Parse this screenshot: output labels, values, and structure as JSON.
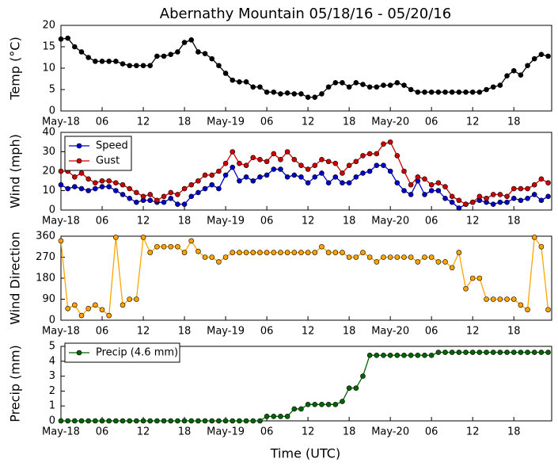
{
  "chart_data": [
    {
      "type": "line",
      "title": "Abernathy Mountain 05/18/16 - 05/20/16",
      "ylabel": "Temp (°C)",
      "categories": [
        "May-18",
        null,
        null,
        null,
        null,
        null,
        "06",
        null,
        null,
        null,
        null,
        null,
        "12",
        null,
        null,
        null,
        null,
        null,
        "18",
        null,
        null,
        null,
        null,
        null,
        "May-19",
        null,
        null,
        null,
        null,
        null,
        "06",
        null,
        null,
        null,
        null,
        null,
        "12",
        null,
        null,
        null,
        null,
        null,
        "18",
        null,
        null,
        null,
        null,
        null,
        "May-20",
        null,
        null,
        null,
        null,
        null,
        "06",
        null,
        null,
        null,
        null,
        null,
        "12",
        null,
        null,
        null,
        null,
        null,
        "18",
        null,
        null,
        null,
        null,
        null
      ],
      "values": [
        16.8,
        17.0,
        15.0,
        13.8,
        12.5,
        11.6,
        11.6,
        11.6,
        11.6,
        11.0,
        10.6,
        10.6,
        10.6,
        10.6,
        12.8,
        12.8,
        13.2,
        13.8,
        16.0,
        16.6,
        13.8,
        13.4,
        12.2,
        10.6,
        8.8,
        7.2,
        6.8,
        6.8,
        5.6,
        5.6,
        4.4,
        4.4,
        4.0,
        4.2,
        4.0,
        4.0,
        3.2,
        3.2,
        4.0,
        5.6,
        6.6,
        6.6,
        5.6,
        6.6,
        6.2,
        5.6,
        5.6,
        6.0,
        6.0,
        6.6,
        6.0,
        5.0,
        4.4,
        4.4,
        4.4,
        4.4,
        4.4,
        4.4,
        4.4,
        4.4,
        4.4,
        4.4,
        5.0,
        5.6,
        6.0,
        8.2,
        9.4,
        8.4,
        10.6,
        12.2,
        13.2,
        12.8
      ],
      "color": "#000000",
      "ylim": [
        0,
        20
      ],
      "yticks": [
        0,
        5,
        10,
        15,
        20
      ]
    },
    {
      "type": "line",
      "ylabel": "Wind (mph)",
      "categories": [
        "May-18",
        null,
        null,
        null,
        null,
        null,
        "06",
        null,
        null,
        null,
        null,
        null,
        "12",
        null,
        null,
        null,
        null,
        null,
        "18",
        null,
        null,
        null,
        null,
        null,
        "May-19",
        null,
        null,
        null,
        null,
        null,
        "06",
        null,
        null,
        null,
        null,
        null,
        "12",
        null,
        null,
        null,
        null,
        null,
        "18",
        null,
        null,
        null,
        null,
        null,
        "May-20",
        null,
        null,
        null,
        null,
        null,
        "06",
        null,
        null,
        null,
        null,
        null,
        "12",
        null,
        null,
        null,
        null,
        null,
        "18",
        null,
        null,
        null,
        null,
        null
      ],
      "series": [
        {
          "name": "Speed",
          "color": "#0000cc",
          "values": [
            13,
            11,
            12,
            11,
            10,
            11,
            12,
            12,
            10,
            8,
            6,
            4,
            5,
            5,
            4,
            4,
            6,
            3,
            3,
            7,
            9,
            11,
            13,
            11,
            18,
            22,
            15,
            17,
            15,
            17,
            18,
            21,
            21,
            17,
            18,
            17,
            14,
            17,
            19,
            14,
            17,
            14,
            14,
            17,
            19,
            20,
            23,
            23,
            20,
            14,
            10,
            8,
            15,
            8,
            10,
            10,
            6,
            4,
            1,
            3,
            4,
            5,
            4,
            3,
            4,
            4,
            6,
            5,
            6,
            8,
            5,
            7
          ]
        },
        {
          "name": "Gust",
          "color": "#cc0000",
          "values": [
            20,
            20,
            17,
            19,
            16,
            14,
            15,
            15,
            14,
            13,
            11,
            9,
            7,
            8,
            5,
            7,
            9,
            8,
            11,
            13,
            15,
            18,
            18,
            20,
            24,
            30,
            24,
            23,
            27,
            26,
            25,
            29,
            26,
            30,
            26,
            23,
            21,
            23,
            26,
            25,
            24,
            19,
            23,
            25,
            28,
            29,
            29,
            34,
            35,
            28,
            20,
            13,
            17,
            16,
            13,
            14,
            12,
            7,
            5,
            3,
            4,
            7,
            6,
            8,
            8,
            7,
            11,
            11,
            11,
            13,
            16,
            14
          ]
        }
      ],
      "ylim": [
        0,
        40
      ],
      "yticks": [
        0,
        10,
        20,
        30,
        40
      ],
      "legend": "upper left"
    },
    {
      "type": "line",
      "ylabel": "Wind Direction",
      "categories": [
        "May-18",
        null,
        null,
        null,
        null,
        null,
        "06",
        null,
        null,
        null,
        null,
        null,
        "12",
        null,
        null,
        null,
        null,
        null,
        "18",
        null,
        null,
        null,
        null,
        null,
        "May-19",
        null,
        null,
        null,
        null,
        null,
        "06",
        null,
        null,
        null,
        null,
        null,
        "12",
        null,
        null,
        null,
        null,
        null,
        "18",
        null,
        null,
        null,
        null,
        null,
        "May-20",
        null,
        null,
        null,
        null,
        null,
        "06",
        null,
        null,
        null,
        null,
        null,
        "12",
        null,
        null,
        null,
        null,
        null,
        "18",
        null,
        null,
        null,
        null,
        null
      ],
      "values": [
        340,
        50,
        65,
        20,
        50,
        65,
        45,
        20,
        355,
        65,
        90,
        90,
        355,
        290,
        315,
        315,
        315,
        315,
        290,
        340,
        295,
        270,
        270,
        250,
        270,
        290,
        290,
        290,
        290,
        290,
        290,
        290,
        290,
        290,
        290,
        290,
        290,
        290,
        315,
        290,
        290,
        290,
        270,
        270,
        290,
        270,
        250,
        270,
        270,
        270,
        270,
        270,
        250,
        270,
        270,
        250,
        250,
        225,
        290,
        135,
        180,
        180,
        90,
        90,
        90,
        90,
        90,
        65,
        45,
        355,
        315,
        45
      ],
      "color": "#ffa500",
      "ylim": [
        0,
        360
      ],
      "yticks": [
        0,
        90,
        180,
        270,
        360
      ]
    },
    {
      "type": "line",
      "ylabel": "Precip (mm)",
      "xlabel": "Time (UTC)",
      "categories": [
        "May-18",
        null,
        null,
        null,
        null,
        null,
        "06",
        null,
        null,
        null,
        null,
        null,
        "12",
        null,
        null,
        null,
        null,
        null,
        "18",
        null,
        null,
        null,
        null,
        null,
        "May-19",
        null,
        null,
        null,
        null,
        null,
        "06",
        null,
        null,
        null,
        null,
        null,
        "12",
        null,
        null,
        null,
        null,
        null,
        "18",
        null,
        null,
        null,
        null,
        null,
        "May-20",
        null,
        null,
        null,
        null,
        null,
        "06",
        null,
        null,
        null,
        null,
        null,
        "12",
        null,
        null,
        null,
        null,
        null,
        "18",
        null,
        null,
        null,
        null,
        null
      ],
      "series": [
        {
          "name": "Precip (4.6 mm)",
          "color": "#006400",
          "values": [
            0,
            0,
            0,
            0,
            0,
            0,
            0,
            0,
            0,
            0,
            0,
            0,
            0,
            0,
            0,
            0,
            0,
            0,
            0,
            0,
            0,
            0,
            0,
            0,
            0,
            0,
            0,
            0,
            0,
            0,
            0.3,
            0.3,
            0.3,
            0.3,
            0.8,
            0.8,
            1.1,
            1.1,
            1.1,
            1.1,
            1.1,
            1.3,
            2.2,
            2.2,
            3.0,
            4.4,
            4.4,
            4.4,
            4.4,
            4.4,
            4.4,
            4.4,
            4.4,
            4.4,
            4.4,
            4.6,
            4.6,
            4.6,
            4.6,
            4.6,
            4.6,
            4.6,
            4.6,
            4.6,
            4.6,
            4.6,
            4.6,
            4.6,
            4.6,
            4.6,
            4.6,
            4.6
          ]
        }
      ],
      "ylim": [
        0,
        5
      ],
      "yticks": [
        0,
        1,
        2,
        3,
        4,
        5
      ],
      "legend": "upper left"
    }
  ]
}
